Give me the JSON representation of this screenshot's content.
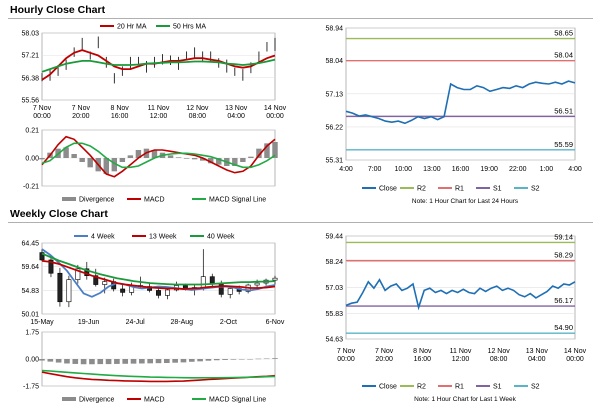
{
  "sections": {
    "hourly_title": "Hourly Close Chart",
    "weekly_title": "Weekly Close Chart"
  },
  "colors": {
    "price": "#000000",
    "ma_red": "#c00000",
    "ma_green": "#1a9a3a",
    "ma_blue": "#4a7ec8",
    "close": "#1f6fb4",
    "r2": "#9bbb59",
    "r1": "#e07070",
    "s1": "#8064a2",
    "s2": "#5ab4c8",
    "divergence": "#8c8c8c",
    "macd": "#c00000",
    "signal": "#22aa44"
  },
  "chart_data": [
    {
      "id": "hourly-ma",
      "type": "line",
      "x_tick_labels": [
        [
          "7 Nov",
          "00:00"
        ],
        [
          "7 Nov",
          "20:00"
        ],
        [
          "8 Nov",
          "16:00"
        ],
        [
          "11 Nov",
          "12:00"
        ],
        [
          "12 Nov",
          "08:00"
        ],
        [
          "13 Nov",
          "04:00"
        ],
        [
          "14 Nov",
          "00:00"
        ]
      ],
      "y_ticks": [
        "58.03",
        "57.21",
        "56.38",
        "55.56"
      ],
      "ylim": [
        55.56,
        58.03
      ],
      "legend": [
        "20 Hr MA",
        "50 Hrs MA"
      ],
      "series": [
        {
          "name": "Price",
          "values": [
            56.4,
            56.5,
            56.6,
            56.9,
            57.3,
            57.6,
            57.2,
            57.7,
            56.9,
            56.4,
            56.6,
            56.9,
            57.0,
            56.8,
            56.9,
            57.1,
            57.0,
            56.9,
            57.2,
            57.3,
            57.1,
            57.2,
            56.9,
            56.8,
            56.6,
            56.5,
            56.7,
            57.2,
            57.5,
            57.6
          ]
        },
        {
          "name": "20 Hr MA",
          "values": [
            56.3,
            56.5,
            56.8,
            57.1,
            57.3,
            57.4,
            57.3,
            57.2,
            57.0,
            56.8,
            56.7,
            56.7,
            56.8,
            56.9,
            56.9,
            56.95,
            57.0,
            57.0,
            57.05,
            57.1,
            57.1,
            57.05,
            57.0,
            56.9,
            56.8,
            56.75,
            56.8,
            56.95,
            57.1,
            57.2
          ]
        },
        {
          "name": "50 Hrs MA",
          "values": [
            56.6,
            56.7,
            56.8,
            56.9,
            56.95,
            57.0,
            57.0,
            56.95,
            56.9,
            56.85,
            56.85,
            56.85,
            56.87,
            56.9,
            56.92,
            56.93,
            56.95,
            56.95,
            56.96,
            56.98,
            56.98,
            56.97,
            56.95,
            56.9,
            56.88,
            56.85,
            56.88,
            56.92,
            56.98,
            57.05
          ]
        }
      ]
    },
    {
      "id": "hourly-macd",
      "type": "line",
      "y_ticks": [
        "0.21",
        "0.00",
        "-0.21"
      ],
      "ylim": [
        -0.21,
        0.21
      ],
      "legend": [
        "Divergence",
        "MACD",
        "MACD Signal Line"
      ],
      "series": [
        {
          "name": "MACD",
          "values": [
            -0.05,
            0.02,
            0.1,
            0.16,
            0.14,
            0.08,
            0.02,
            -0.05,
            -0.12,
            -0.14,
            -0.1,
            -0.05,
            0.0,
            0.04,
            0.06,
            0.06,
            0.05,
            0.04,
            0.03,
            0.02,
            0.0,
            -0.03,
            -0.06,
            -0.09,
            -0.11,
            -0.1,
            -0.06,
            0.02,
            0.09,
            0.14
          ]
        },
        {
          "name": "MACD Signal Line",
          "values": [
            -0.04,
            -0.02,
            0.03,
            0.08,
            0.11,
            0.11,
            0.09,
            0.05,
            0.0,
            -0.04,
            -0.07,
            -0.07,
            -0.06,
            -0.03,
            0.0,
            0.02,
            0.03,
            0.035,
            0.035,
            0.03,
            0.02,
            0.01,
            -0.01,
            -0.03,
            -0.05,
            -0.07,
            -0.07,
            -0.05,
            -0.02,
            0.02
          ]
        }
      ]
    },
    {
      "id": "hourly-pivot",
      "type": "line",
      "x_tick_labels": [
        "4:00",
        "7:00",
        "10:00",
        "13:00",
        "16:00",
        "19:00",
        "22:00",
        "1:00",
        "4:00"
      ],
      "y_ticks": [
        "58.94",
        "58.04",
        "57.13",
        "56.22",
        "55.31"
      ],
      "ylim": [
        55.31,
        58.94
      ],
      "pivot_levels": {
        "R2": 58.65,
        "R1": 58.04,
        "S1": 56.51,
        "S2": 55.59
      },
      "level_labels": {
        "R2": "58.65",
        "R1": "58.04",
        "S1": "56.51",
        "S2": "55.59"
      },
      "close": [
        56.65,
        56.6,
        56.52,
        56.55,
        56.5,
        56.45,
        56.38,
        56.35,
        56.38,
        56.32,
        56.4,
        56.5,
        56.45,
        56.5,
        56.42,
        56.5,
        57.4,
        57.3,
        57.25,
        57.25,
        57.35,
        57.3,
        57.2,
        57.25,
        57.3,
        57.28,
        57.35,
        57.3,
        57.4,
        57.45,
        57.42,
        57.4,
        57.45,
        57.4,
        57.48,
        57.43
      ],
      "legend": [
        "Close",
        "R2",
        "R1",
        "S1",
        "S2"
      ],
      "note": "Note: 1 Hour Chart for Last 24 Hours"
    },
    {
      "id": "weekly-ma",
      "type": "line",
      "x_tick_labels": [
        "15-May",
        "19-Jun",
        "24-Jul",
        "28-Aug",
        "2-Oct",
        "6-Nov"
      ],
      "y_ticks": [
        "64.45",
        "59.64",
        "54.83",
        "50.01"
      ],
      "ylim": [
        50.01,
        64.45
      ],
      "legend": [
        "4 Week",
        "13 Week",
        "40 Week"
      ],
      "series": [
        {
          "name": "4 Week",
          "values": [
            63.2,
            62.0,
            60.5,
            58.8,
            56.5,
            54.2,
            53.5,
            54.3,
            55.6,
            56.3,
            56.0,
            55.5,
            55.2,
            55.4,
            55.6,
            55.5,
            55.3,
            55.1,
            54.9,
            55.1,
            55.3,
            55.5,
            55.6,
            55.4,
            55.0,
            54.8,
            55.1,
            55.6,
            55.9
          ]
        },
        {
          "name": "13 Week",
          "values": [
            60.8,
            60.6,
            60.2,
            59.6,
            59.0,
            58.4,
            57.8,
            57.3,
            56.8,
            56.3,
            56.0,
            55.8,
            55.6,
            55.4,
            55.3,
            55.2,
            55.2,
            55.1,
            55.2,
            55.3,
            55.5,
            55.6,
            55.7,
            55.6,
            55.5,
            55.3,
            55.3,
            55.4,
            55.6
          ]
        },
        {
          "name": "40 Week",
          "values": [
            62.3,
            61.6,
            60.9,
            60.3,
            59.7,
            59.1,
            58.6,
            58.1,
            57.7,
            57.3,
            57.0,
            56.7,
            56.5,
            56.3,
            56.2,
            56.1,
            56.0,
            56.0,
            56.0,
            56.0,
            56.1,
            56.2,
            56.3,
            56.4,
            56.5,
            56.5,
            56.6,
            56.6,
            56.7
          ]
        }
      ],
      "candles": [
        [
          62.5,
          63.2,
          60.8,
          61.0
        ],
        [
          61.0,
          61.5,
          57.5,
          58.3
        ],
        [
          58.3,
          59.4,
          51.5,
          52.5
        ],
        [
          52.5,
          57.8,
          51.4,
          57.0
        ],
        [
          57.0,
          60.0,
          56.2,
          59.2
        ],
        [
          59.2,
          60.6,
          57.0,
          57.8
        ],
        [
          57.8,
          59.2,
          55.6,
          56.0
        ],
        [
          56.0,
          57.4,
          54.2,
          56.6
        ],
        [
          56.6,
          57.2,
          54.6,
          55.1
        ],
        [
          55.1,
          56.2,
          53.6,
          54.4
        ],
        [
          54.4,
          56.4,
          53.8,
          55.8
        ],
        [
          55.8,
          57.6,
          55.2,
          55.6
        ],
        [
          55.6,
          56.4,
          54.4,
          54.8
        ],
        [
          54.8,
          55.6,
          53.2,
          53.8
        ],
        [
          53.8,
          55.2,
          53.0,
          54.9
        ],
        [
          54.9,
          56.6,
          54.6,
          55.8
        ],
        [
          55.8,
          56.2,
          54.8,
          55.0
        ],
        [
          55.0,
          56.0,
          53.8,
          55.4
        ],
        [
          55.4,
          63.2,
          54.8,
          57.6
        ],
        [
          57.6,
          58.2,
          55.6,
          56.2
        ],
        [
          56.2,
          56.8,
          53.4,
          54.0
        ],
        [
          54.0,
          55.4,
          53.2,
          55.2
        ],
        [
          55.2,
          55.8,
          54.0,
          54.6
        ],
        [
          54.6,
          56.2,
          54.2,
          55.9
        ],
        [
          55.9,
          57.0,
          55.2,
          56.3
        ],
        [
          56.3,
          57.2,
          55.8,
          56.9
        ],
        [
          56.9,
          57.8,
          56.0,
          57.3
        ]
      ]
    },
    {
      "id": "weekly-macd",
      "type": "line",
      "y_ticks": [
        "1.75",
        "0.00",
        "-1.75"
      ],
      "ylim": [
        -1.75,
        1.75
      ],
      "legend": [
        "Divergence",
        "MACD",
        "MACD Signal Line"
      ],
      "series": [
        {
          "name": "MACD",
          "values": [
            -0.85,
            -0.95,
            -1.05,
            -1.15,
            -1.22,
            -1.28,
            -1.32,
            -1.35,
            -1.38,
            -1.4,
            -1.42,
            -1.43,
            -1.44,
            -1.45,
            -1.45,
            -1.45,
            -1.44,
            -1.43,
            -1.4,
            -1.37,
            -1.33,
            -1.3,
            -1.27,
            -1.24,
            -1.21,
            -1.18,
            -1.15,
            -1.12,
            -1.08
          ]
        },
        {
          "name": "MACD Signal Line",
          "values": [
            -0.75,
            -0.78,
            -0.82,
            -0.86,
            -0.9,
            -0.94,
            -0.98,
            -1.02,
            -1.05,
            -1.08,
            -1.11,
            -1.13,
            -1.15,
            -1.17,
            -1.18,
            -1.19,
            -1.2,
            -1.21,
            -1.22,
            -1.22,
            -1.22,
            -1.22,
            -1.21,
            -1.2,
            -1.19,
            -1.18,
            -1.17,
            -1.15,
            -1.13
          ]
        }
      ]
    },
    {
      "id": "weekly-pivot",
      "type": "line",
      "x_tick_labels": [
        [
          "7 Nov",
          "00:00"
        ],
        [
          "7 Nov",
          "20:00"
        ],
        [
          "8 Nov",
          "16:00"
        ],
        [
          "11 Nov",
          "12:00"
        ],
        [
          "12 Nov",
          "08:00"
        ],
        [
          "13 Nov",
          "04:00"
        ],
        [
          "14 Nov",
          "00:00"
        ]
      ],
      "y_ticks": [
        "59.44",
        "58.24",
        "57.03",
        "55.83",
        "54.63"
      ],
      "ylim": [
        54.63,
        59.44
      ],
      "pivot_levels": {
        "R2": 59.14,
        "R1": 58.29,
        "S1": 56.17,
        "S2": 54.9
      },
      "level_labels": {
        "R2": "59.14",
        "R1": "58.29",
        "S1": "56.17",
        "S2": "54.90"
      },
      "close": [
        56.2,
        56.3,
        56.35,
        56.8,
        57.3,
        57.0,
        57.4,
        56.9,
        57.1,
        57.2,
        56.9,
        57.0,
        57.2,
        56.1,
        56.9,
        57.0,
        56.8,
        56.9,
        56.75,
        56.9,
        56.8,
        56.95,
        56.8,
        56.75,
        57.0,
        56.85,
        57.0,
        57.1,
        56.9,
        57.0,
        56.9,
        56.7,
        56.6,
        56.75,
        56.55,
        56.7,
        56.85,
        57.1,
        57.0,
        57.2,
        57.15,
        57.3
      ],
      "legend": [
        "Close",
        "R2",
        "R1",
        "S1",
        "S2"
      ],
      "note": "Note: 1 Hour Chart for Last 1 Week"
    }
  ]
}
